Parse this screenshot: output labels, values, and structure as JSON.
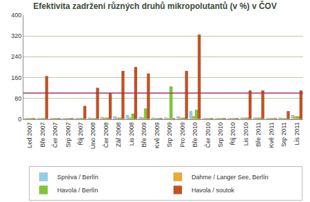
{
  "chart_data": {
    "type": "bar",
    "title": "Efektivita zadržení různých druhů mikropolutantů (v %) v ČOV",
    "categories": [
      "Led 2007",
      "Bře 2007",
      "Čer 2007",
      "Srp 2007",
      "Říj 2007",
      "Úno 2008",
      "Čer 2008",
      "Zář 2008",
      "Lis 2008",
      "Bře 2009",
      "Kvě 2009",
      "Srp 2009",
      "Pro 2009",
      "Bře 2010",
      "Čer 2010",
      "Srp 2010",
      "Říj 2010",
      "Lis 2010",
      "Bře 2011",
      "Kvě 2011",
      "Srp 2011",
      "Lis 2011"
    ],
    "series": [
      {
        "name": "Spréva / Berlín",
        "color": "#8fd3e8",
        "values": [
          3,
          3,
          3,
          3,
          3,
          5,
          8,
          10,
          15,
          8,
          5,
          5,
          10,
          30,
          3,
          3,
          3,
          5,
          5,
          3,
          5,
          15
        ]
      },
      {
        "name": "Dahme / Langer See, Berlín",
        "color": "#f0a830",
        "values": [
          3,
          3,
          3,
          3,
          3,
          3,
          5,
          5,
          5,
          5,
          3,
          3,
          5,
          10,
          3,
          3,
          3,
          5,
          5,
          3,
          3,
          10
        ]
      },
      {
        "name": "Havola / Berlín",
        "color": "#7dc832",
        "values": [
          3,
          3,
          3,
          3,
          3,
          3,
          5,
          5,
          20,
          40,
          3,
          125,
          5,
          35,
          3,
          3,
          3,
          5,
          5,
          3,
          3,
          10
        ]
      },
      {
        "name": "Havola / soutok",
        "color": "#c8501e",
        "values": [
          3,
          165,
          3,
          3,
          50,
          120,
          100,
          185,
          200,
          175,
          3,
          3,
          185,
          325,
          3,
          3,
          3,
          110,
          110,
          3,
          30,
          110
        ]
      }
    ],
    "reference_line": 100,
    "ylim": [
      0,
      400
    ],
    "yticks": [
      0,
      80,
      160,
      240,
      320,
      400
    ],
    "grid": true,
    "legend": "bottom"
  }
}
